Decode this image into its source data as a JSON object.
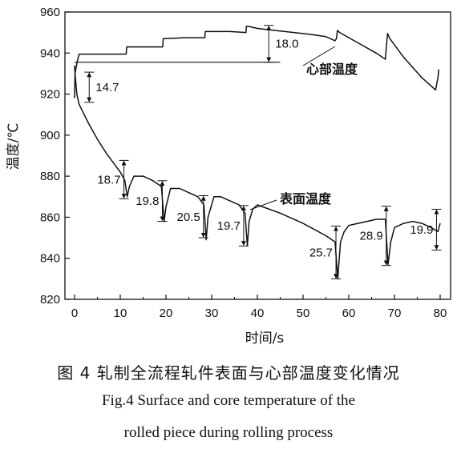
{
  "chart_data": {
    "type": "line",
    "xlabel": "时间/s",
    "ylabel": "温度/℃",
    "xlim": [
      0,
      80
    ],
    "ylim": [
      820,
      960
    ],
    "xticks": [
      0,
      10,
      20,
      30,
      40,
      50,
      60,
      70,
      80
    ],
    "yticks": [
      820,
      840,
      860,
      880,
      900,
      920,
      940,
      960
    ],
    "grid": false,
    "series": [
      {
        "name": "心部温度",
        "x": [
          0,
          0.1,
          0.6,
          1,
          4,
          8,
          11.3,
          11.4,
          12,
          15,
          19,
          19.3,
          19.4,
          20,
          24,
          28,
          28.5,
          28.6,
          30,
          34,
          37.5,
          37.6,
          38,
          40,
          44,
          48,
          52,
          55,
          57,
          57.3,
          57.5,
          58,
          62,
          66,
          68,
          68.3,
          68.5,
          69,
          72,
          76,
          79,
          79.5,
          79.7
        ],
        "y": [
          918,
          930,
          936,
          939.5,
          939.5,
          939.5,
          939.5,
          943,
          943,
          943,
          943,
          943,
          947,
          947,
          947.5,
          947.5,
          947.5,
          950.5,
          950.5,
          950.5,
          950,
          953,
          953,
          952,
          951,
          950,
          949,
          948,
          946,
          947,
          951,
          950,
          945,
          940,
          937,
          945,
          949.5,
          947,
          938,
          928,
          922,
          928,
          932
        ]
      },
      {
        "name": "表面温度",
        "x": [
          0,
          0.1,
          0.5,
          1,
          3,
          5,
          7,
          9,
          10,
          11,
          11.5,
          12,
          13,
          15,
          17,
          19,
          19.6,
          20,
          21,
          23,
          25,
          27,
          28.3,
          28.8,
          29.2,
          30.5,
          32,
          34,
          36,
          37.3,
          37.8,
          38.2,
          39,
          40,
          45,
          50,
          55,
          57,
          57.6,
          58.2,
          59,
          60,
          62,
          64,
          66,
          68,
          68.6,
          69.2,
          70,
          72,
          74,
          76,
          78,
          79.5,
          80
        ],
        "y": [
          934,
          930,
          920,
          915,
          906,
          898,
          891,
          885,
          882,
          878,
          870,
          875,
          880,
          880,
          878,
          875,
          858,
          865,
          874,
          874,
          872,
          870,
          866,
          849,
          860,
          870,
          870,
          868,
          866,
          862,
          846,
          858,
          864,
          866,
          862,
          857,
          851,
          848,
          830,
          848,
          853,
          856,
          857,
          858,
          859,
          859,
          837,
          848,
          855,
          857,
          858,
          857,
          855,
          853,
          857
        ]
      }
    ],
    "reference_line": {
      "y": 935.5,
      "x": [
        0,
        45
      ]
    },
    "annotations": [
      {
        "label": "14.7",
        "x": 3.2,
        "y_from": 916,
        "y_to": 930.7
      },
      {
        "label": "18.0",
        "x": 42.5,
        "y_from": 935.5,
        "y_to": 953.5
      },
      {
        "label": "18.7",
        "x": 10.8,
        "y_from": 869,
        "y_to": 887.7
      },
      {
        "label": "19.8",
        "x": 19.2,
        "y_from": 858,
        "y_to": 877.8
      },
      {
        "label": "20.5",
        "x": 28.2,
        "y_from": 850,
        "y_to": 870.5
      },
      {
        "label": "19.7",
        "x": 37,
        "y_from": 846,
        "y_to": 865.7
      },
      {
        "label": "25.7",
        "x": 57.2,
        "y_from": 830,
        "y_to": 855.7
      },
      {
        "label": "28.9",
        "x": 68.2,
        "y_from": 836.5,
        "y_to": 865.4
      },
      {
        "label": "19.9",
        "x": 79.2,
        "y_from": 844,
        "y_to": 863.9
      }
    ]
  },
  "captions": {
    "zh": "图 4   轧制全流程轧件表面与心部温度变化情况",
    "en_line1": "Fig.4   Surface and core temperature of the",
    "en_line2": "rolled piece during rolling process"
  }
}
